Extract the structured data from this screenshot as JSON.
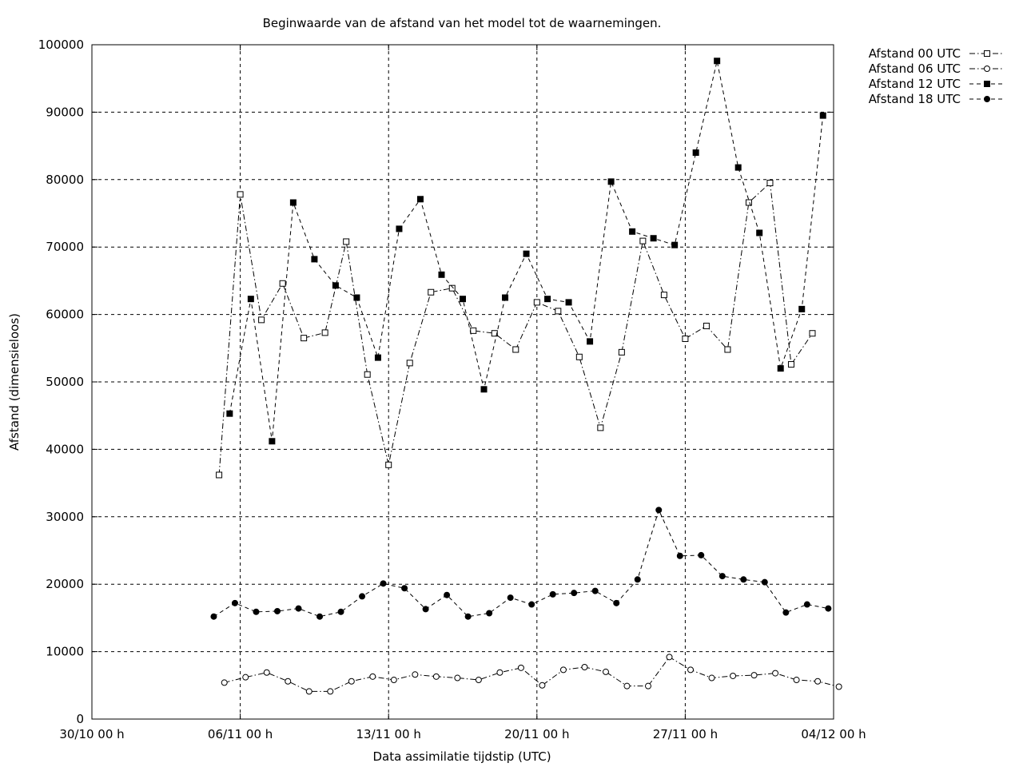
{
  "chart_data": {
    "type": "line",
    "title": "Beginwaarde van de afstand van het model tot de waarnemingen.",
    "xlabel": "Data assimilatie tijdstip (UTC)",
    "ylabel": "Afstand (dimensieloos)",
    "x_tick_labels": [
      "30/10 00 h",
      "06/11 00 h",
      "13/11 00 h",
      "20/11 00 h",
      "27/11 00 h",
      "04/12 00 h"
    ],
    "y_tick_labels": [
      "0",
      "10000",
      "20000",
      "30000",
      "40000",
      "50000",
      "60000",
      "70000",
      "80000",
      "90000",
      "100000"
    ],
    "ylim": [
      0,
      100000
    ],
    "grid": true,
    "legend_position": "top-right, outside plot",
    "series": [
      {
        "name": "Afstand 00 UTC",
        "marker": "open-square",
        "dash": "dash-dot",
        "x": [
          "05/11",
          "06/11",
          "07/11",
          "08/11",
          "09/11",
          "10/11",
          "11/11",
          "12/11",
          "13/11",
          "14/11",
          "15/11",
          "16/11",
          "17/11",
          "18/11",
          "19/11",
          "20/11",
          "21/11",
          "22/11",
          "23/11",
          "24/11",
          "25/11",
          "26/11",
          "27/11",
          "28/11",
          "29/11",
          "30/11",
          "01/12",
          "02/12",
          "03/12"
        ],
        "values": [
          36200,
          77800,
          59200,
          64600,
          56500,
          57300,
          70800,
          51100,
          37700,
          52800,
          63300,
          63900,
          57600,
          57200,
          54800,
          61800,
          60500,
          53700,
          43200,
          54400,
          70900,
          62900,
          56400,
          58300,
          54800,
          76600,
          79500,
          52600,
          57200
        ]
      },
      {
        "name": "Afstand 06 UTC",
        "marker": "open-circle",
        "dash": "dash-dot",
        "x": [
          "05/11",
          "06/11",
          "07/11",
          "08/11",
          "09/11",
          "10/11",
          "11/11",
          "12/11",
          "13/11",
          "14/11",
          "15/11",
          "16/11",
          "17/11",
          "18/11",
          "19/11",
          "20/11",
          "21/11",
          "22/11",
          "23/11",
          "24/11",
          "25/11",
          "26/11",
          "27/11",
          "28/11",
          "29/11",
          "30/11",
          "01/12",
          "02/12",
          "03/12",
          "04/12"
        ],
        "values": [
          5400,
          6200,
          6900,
          5600,
          4100,
          4100,
          5600,
          6300,
          5800,
          6600,
          6300,
          6100,
          5800,
          6900,
          7600,
          5000,
          7300,
          7700,
          7000,
          4900,
          4900,
          9200,
          7300,
          6100,
          6400,
          6500,
          6800,
          5800,
          5600,
          4800
        ]
      },
      {
        "name": "Afstand 12 UTC",
        "marker": "filled-square",
        "dash": "dashed",
        "x": [
          "05/11",
          "06/11",
          "07/11",
          "08/11",
          "09/11",
          "10/11",
          "11/11",
          "12/11",
          "13/11",
          "14/11",
          "15/11",
          "16/11",
          "17/11",
          "18/11",
          "19/11",
          "20/11",
          "21/11",
          "22/11",
          "23/11",
          "24/11",
          "25/11",
          "26/11",
          "27/11",
          "28/11",
          "29/11",
          "30/11",
          "01/12",
          "02/12",
          "03/12"
        ],
        "values": [
          45300,
          62300,
          41200,
          76600,
          68200,
          64300,
          62500,
          53600,
          72700,
          77100,
          65900,
          62300,
          48900,
          62500,
          69000,
          62300,
          61800,
          56000,
          79700,
          72300,
          71300,
          70300,
          84000,
          97600,
          81800,
          72100,
          52000,
          60800,
          89500
        ]
      },
      {
        "name": "Afstand 18 UTC",
        "marker": "filled-circle",
        "dash": "dashed",
        "x": [
          "04/11",
          "05/11",
          "06/11",
          "07/11",
          "08/11",
          "09/11",
          "10/11",
          "11/11",
          "12/11",
          "13/11",
          "14/11",
          "15/11",
          "16/11",
          "17/11",
          "18/11",
          "19/11",
          "20/11",
          "21/11",
          "22/11",
          "23/11",
          "24/11",
          "25/11",
          "26/11",
          "27/11",
          "28/11",
          "29/11",
          "30/11",
          "01/12",
          "02/12",
          "03/12"
        ],
        "values": [
          15200,
          17200,
          15900,
          16000,
          16400,
          15200,
          15900,
          18200,
          20100,
          19400,
          16300,
          18400,
          15200,
          15700,
          18000,
          17000,
          18500,
          18700,
          19000,
          17200,
          20700,
          31000,
          24200,
          24300,
          21200,
          20700,
          20300,
          15800,
          17000,
          16400
        ]
      }
    ]
  }
}
